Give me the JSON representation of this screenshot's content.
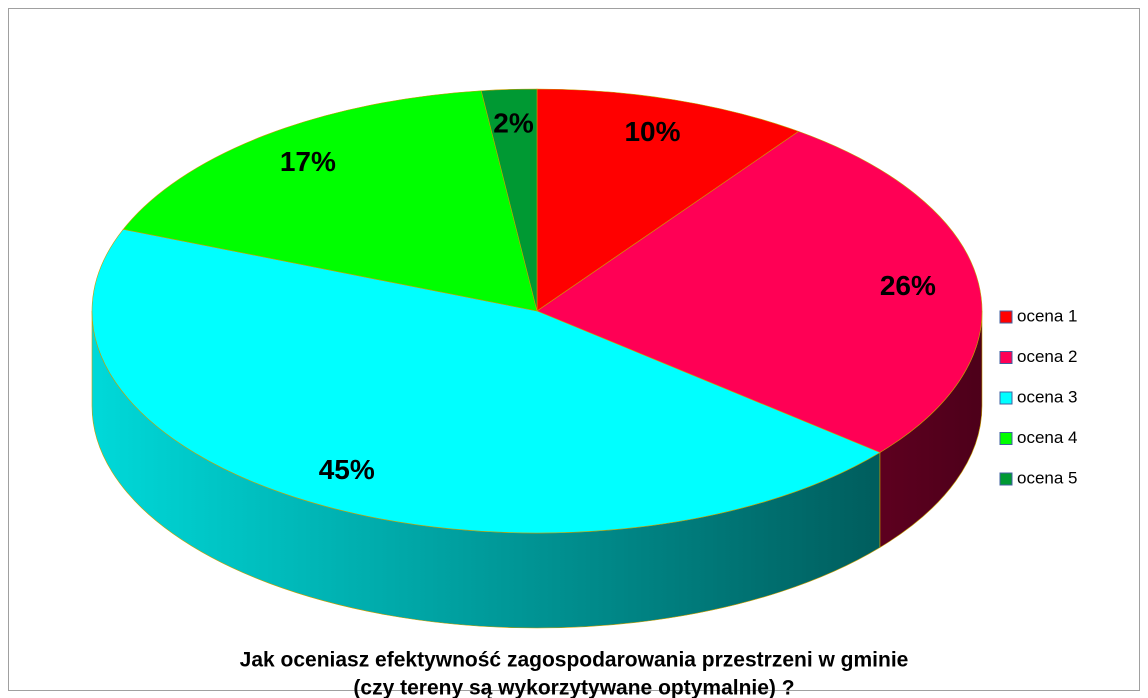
{
  "chart_data": {
    "type": "pie",
    "title": [
      "Jak oceniasz efektywność zagospodarowania przestrzeni w gminie",
      "(czy tereny są wykorzytywane optymalnie) ?"
    ],
    "categories": [
      "ocena 1",
      "ocena 2",
      "ocena 3",
      "ocena 4",
      "ocena 5"
    ],
    "values": [
      10,
      26,
      45,
      17,
      2
    ],
    "value_labels": [
      "10%",
      "26%",
      "45%",
      "17%",
      "2%"
    ],
    "colors": [
      "#ff0000",
      "#ff0055",
      "#00ffff",
      "#00ff00",
      "#009933"
    ],
    "legend": "right"
  }
}
